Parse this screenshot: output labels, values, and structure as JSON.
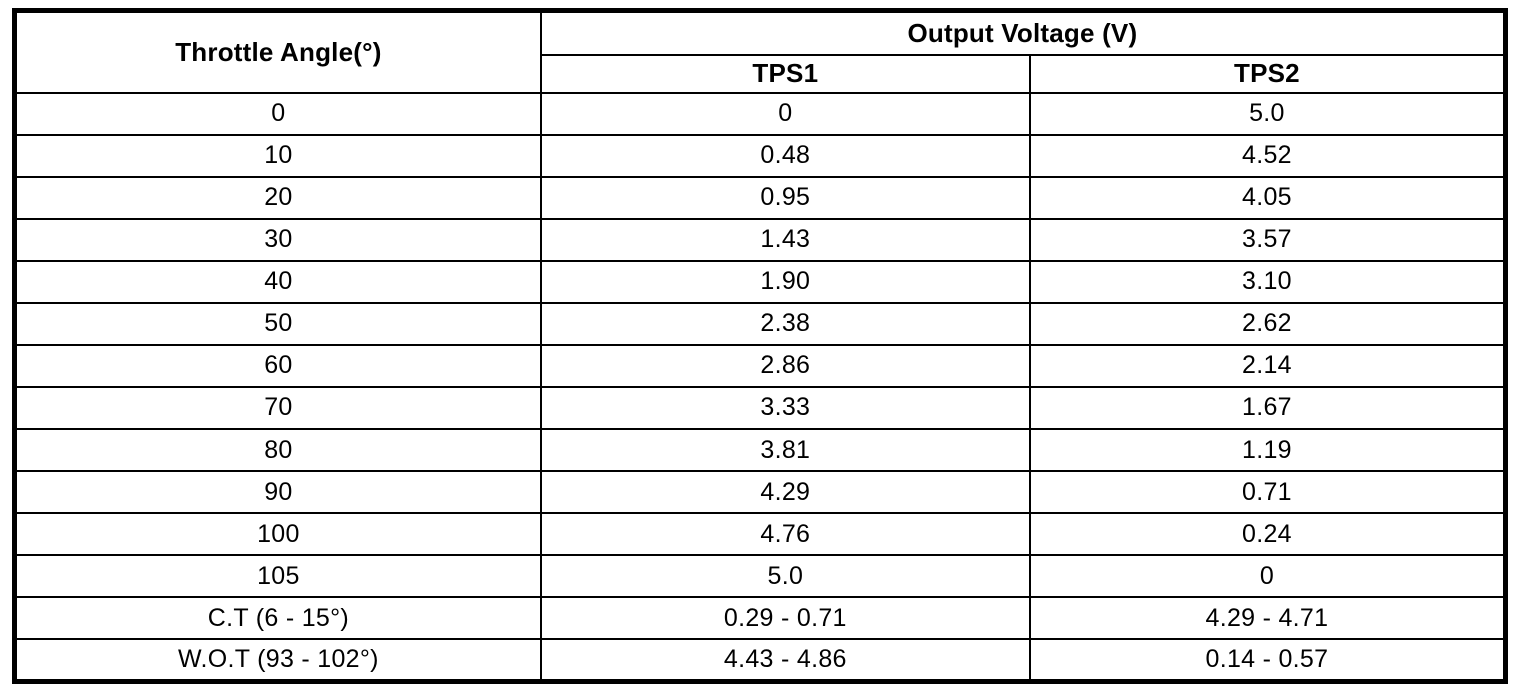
{
  "table": {
    "header": {
      "angle_label": "Throttle Angle(°)",
      "voltage_group_label": "Output Voltage (V)",
      "tps1_label": "TPS1",
      "tps2_label": "TPS2"
    },
    "rows": [
      {
        "angle": "0",
        "tps1": "0",
        "tps2": "5.0"
      },
      {
        "angle": "10",
        "tps1": "0.48",
        "tps2": "4.52"
      },
      {
        "angle": "20",
        "tps1": "0.95",
        "tps2": "4.05"
      },
      {
        "angle": "30",
        "tps1": "1.43",
        "tps2": "3.57"
      },
      {
        "angle": "40",
        "tps1": "1.90",
        "tps2": "3.10"
      },
      {
        "angle": "50",
        "tps1": "2.38",
        "tps2": "2.62"
      },
      {
        "angle": "60",
        "tps1": "2.86",
        "tps2": "2.14"
      },
      {
        "angle": "70",
        "tps1": "3.33",
        "tps2": "1.67"
      },
      {
        "angle": "80",
        "tps1": "3.81",
        "tps2": "1.19"
      },
      {
        "angle": "90",
        "tps1": "4.29",
        "tps2": "0.71"
      },
      {
        "angle": "100",
        "tps1": "4.76",
        "tps2": "0.24"
      },
      {
        "angle": "105",
        "tps1": "5.0",
        "tps2": "0"
      },
      {
        "angle": "C.T (6 - 15°)",
        "tps1": "0.29 - 0.71",
        "tps2": "4.29 - 4.71"
      },
      {
        "angle": "W.O.T (93 - 102°)",
        "tps1": "4.43 - 4.86",
        "tps2": "0.14 - 0.57"
      }
    ],
    "colors": {
      "border": "#000000",
      "background": "#ffffff",
      "text": "#000000"
    }
  },
  "chart_data": {
    "type": "table",
    "title": "Output Voltage (V)",
    "columns": [
      "Throttle Angle(°)",
      "TPS1",
      "TPS2"
    ],
    "x": [
      0,
      10,
      20,
      30,
      40,
      50,
      60,
      70,
      80,
      90,
      100,
      105
    ],
    "series": [
      {
        "name": "TPS1",
        "values": [
          0,
          0.48,
          0.95,
          1.43,
          1.9,
          2.38,
          2.86,
          3.33,
          3.81,
          4.29,
          4.76,
          5.0
        ]
      },
      {
        "name": "TPS2",
        "values": [
          5.0,
          4.52,
          4.05,
          3.57,
          3.1,
          2.62,
          2.14,
          1.67,
          1.19,
          0.71,
          0.24,
          0
        ]
      }
    ],
    "annotations": [
      {
        "label": "C.T (6 - 15°)",
        "TPS1": "0.29 - 0.71",
        "TPS2": "4.29 - 4.71"
      },
      {
        "label": "W.O.T (93 - 102°)",
        "TPS1": "4.43 - 4.86",
        "TPS2": "0.14 - 0.57"
      }
    ]
  }
}
